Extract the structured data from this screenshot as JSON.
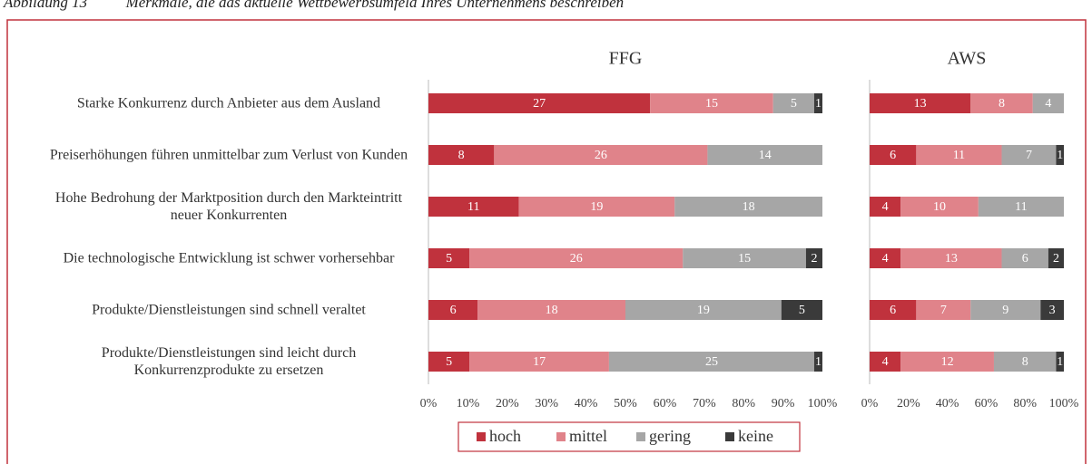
{
  "chart_data": [
    {
      "type": "bar",
      "orientation": "horizontal",
      "stacking": "percent",
      "figure_title": "Abbildung 13    Merkmale, die das aktuelle Wettbewerbsumfeld Ihres Unternehmens beschreiben",
      "title": "FFG",
      "categories": [
        "Starke Konkurrenz durch Anbieter aus dem Ausland",
        "Preiserhöhungen führen unmittelbar zum Verlust von Kunden",
        "Hohe Bedrohung der Marktposition durch den Markteintritt neuer Konkurrenten",
        "Die technologische Entwicklung ist schwer vorhersehbar",
        "Produkte/Dienstleistungen sind schnell veraltet",
        "Produkte/Dienstleistungen sind leicht durch Konkurrenzprodukte zu ersetzen"
      ],
      "series": [
        {
          "name": "hoch",
          "color": "#c0323d",
          "values": [
            27,
            8,
            11,
            5,
            6,
            5
          ]
        },
        {
          "name": "mittel",
          "color": "#e0838a",
          "values": [
            15,
            26,
            19,
            26,
            18,
            17
          ]
        },
        {
          "name": "gering",
          "color": "#a6a6a6",
          "values": [
            5,
            14,
            18,
            15,
            19,
            25
          ]
        },
        {
          "name": "keine",
          "color": "#3a3a3a",
          "values": [
            1,
            null,
            null,
            2,
            5,
            1
          ]
        }
      ],
      "xlim": [
        0,
        100
      ],
      "xticks": [
        {
          "value": 0,
          "label": "0%"
        },
        {
          "value": 10,
          "label": "10%"
        },
        {
          "value": 20,
          "label": "20%"
        },
        {
          "value": 30,
          "label": "30%"
        },
        {
          "value": 40,
          "label": "40%"
        },
        {
          "value": 50,
          "label": "50%"
        },
        {
          "value": 60,
          "label": "60%"
        },
        {
          "value": 70,
          "label": "70%"
        },
        {
          "value": 80,
          "label": "80%"
        },
        {
          "value": 90,
          "label": "90%"
        },
        {
          "value": 100,
          "label": "100%"
        }
      ],
      "legend": "bottom"
    },
    {
      "type": "bar",
      "orientation": "horizontal",
      "stacking": "percent",
      "title": "AWS",
      "series": [
        {
          "color": "#c0323d",
          "values": [
            13,
            6,
            4,
            4,
            6,
            4
          ]
        },
        {
          "color": "#e0838a",
          "values": [
            8,
            11,
            10,
            13,
            7,
            12
          ]
        },
        {
          "color": "#a6a6a6",
          "values": [
            4,
            7,
            11,
            6,
            9,
            8
          ]
        },
        {
          "color": "#3a3a3a",
          "values": [
            null,
            1,
            null,
            2,
            3,
            1
          ]
        }
      ],
      "xlim": [
        0,
        100
      ],
      "xticks": [
        {
          "value": 0,
          "label": "0%"
        },
        {
          "value": 20,
          "label": "20%"
        },
        {
          "value": 40,
          "label": "40%"
        },
        {
          "value": 60,
          "label": "60%"
        },
        {
          "value": 80,
          "label": "80%"
        },
        {
          "value": 100,
          "label": "100%"
        }
      ]
    }
  ]
}
